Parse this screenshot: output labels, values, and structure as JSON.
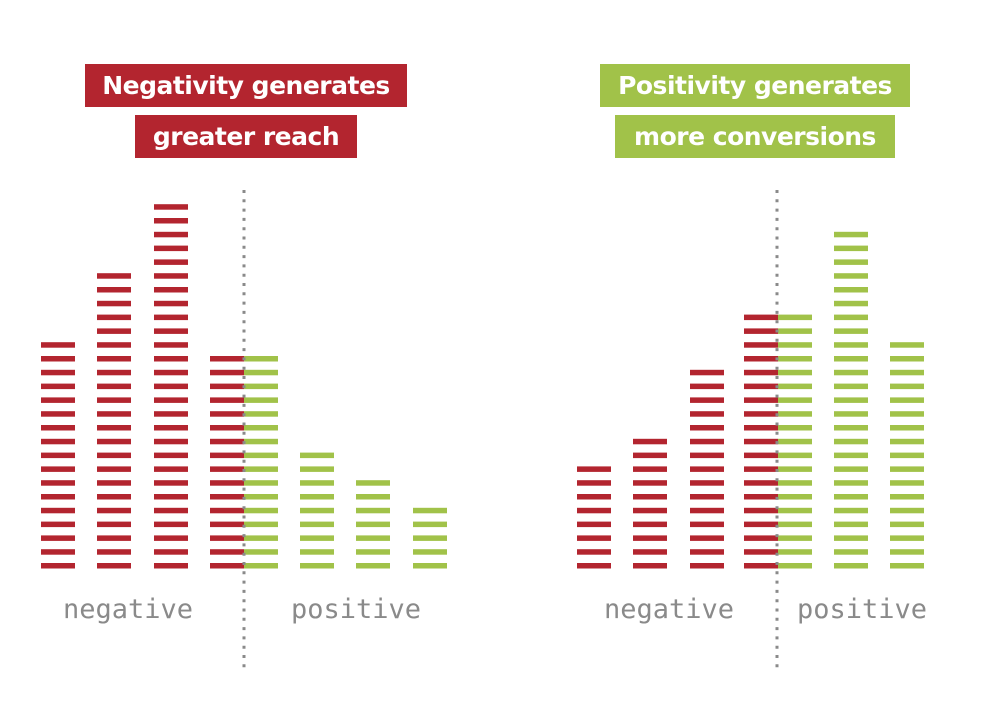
{
  "colors": {
    "negative": "#b3252f",
    "positive": "#a1c249",
    "divider": "#8a8a8a"
  },
  "chart_data": [
    {
      "type": "bar",
      "title_lines": [
        "Negativity generates",
        "greater reach"
      ],
      "title_color": "#b3252f",
      "group_labels": [
        "negative",
        "positive"
      ],
      "series": [
        {
          "group": "negative",
          "values": [
            17,
            22,
            27,
            16
          ]
        },
        {
          "group": "positive",
          "values": [
            16,
            9,
            7,
            5
          ]
        }
      ]
    },
    {
      "type": "bar",
      "title_lines": [
        "Positivity generates",
        "more conversions"
      ],
      "title_color": "#a1c249",
      "group_labels": [
        "negative",
        "positive"
      ],
      "series": [
        {
          "group": "negative",
          "values": [
            8,
            10,
            15,
            19
          ]
        },
        {
          "group": "positive",
          "values": [
            19,
            25,
            17
          ]
        }
      ]
    }
  ]
}
